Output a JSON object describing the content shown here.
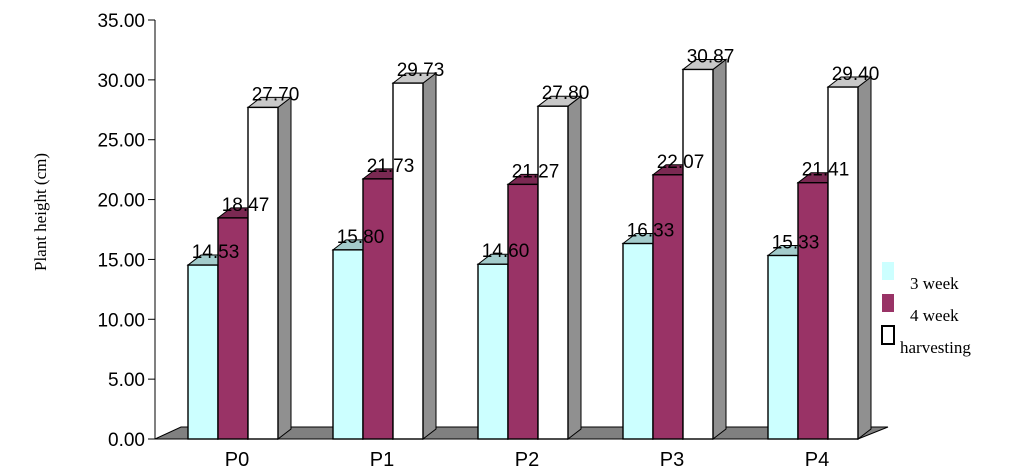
{
  "chart_data": {
    "type": "bar",
    "title": "",
    "xlabel": "",
    "ylabel": "Plant height (cm)",
    "categories": [
      "P0",
      "P1",
      "P2",
      "P3",
      "P4"
    ],
    "series": [
      {
        "name": "3 week",
        "values": [
          14.53,
          15.8,
          14.6,
          16.33,
          15.33
        ],
        "color": "#ccffff"
      },
      {
        "name": "4 week",
        "values": [
          18.47,
          21.73,
          21.27,
          22.07,
          21.41
        ],
        "color": "#993366"
      },
      {
        "name": "harvesting",
        "values": [
          27.7,
          29.73,
          27.8,
          30.87,
          29.4
        ],
        "color": "#ffffff"
      }
    ],
    "ylim": [
      0,
      35
    ],
    "yticks": [
      "0.00",
      "5.00",
      "10.00",
      "15.00",
      "20.00",
      "25.00",
      "30.00",
      "35.00"
    ],
    "data_labels": [
      [
        "14.53",
        "15.80",
        "14.60",
        "16.33",
        "15.33"
      ],
      [
        "18.47",
        "21.73",
        "21.27",
        "22.07",
        "21.41"
      ],
      [
        "27.70",
        "29.73",
        "27.80",
        "30.87",
        "29.40"
      ]
    ],
    "grid": false,
    "legend": "right",
    "style": "3d-bar",
    "floor_color": "#808080"
  }
}
